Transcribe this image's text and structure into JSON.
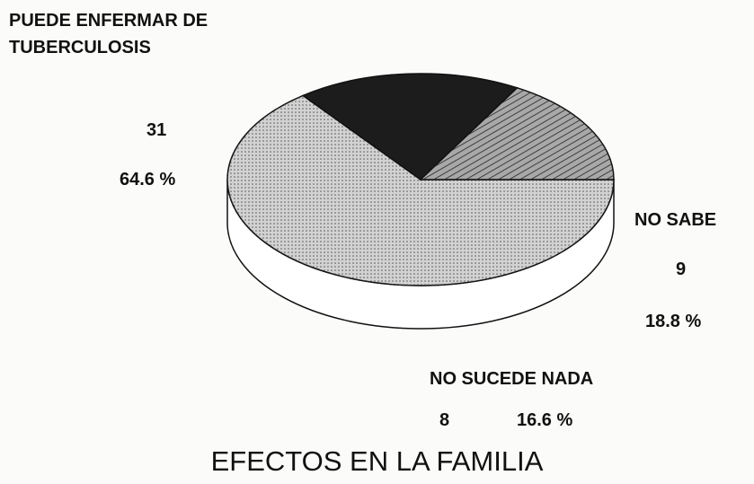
{
  "chart_data": {
    "type": "pie3d",
    "title": "EFECTOS EN LA FAMILIA",
    "categories": [
      "PUEDE ENFERMAR DE TUBERCULOSIS",
      "NO SABE",
      "NO SUCEDE NADA"
    ],
    "values": [
      31,
      9,
      8
    ],
    "percentages": [
      64.6,
      18.8,
      16.6
    ],
    "percentage_labels": [
      "64.6 %",
      "18.8 %",
      "16.6 %"
    ],
    "colors": [
      "#d2d2d2",
      "#1c1c1c",
      "#a8a8a8"
    ]
  }
}
